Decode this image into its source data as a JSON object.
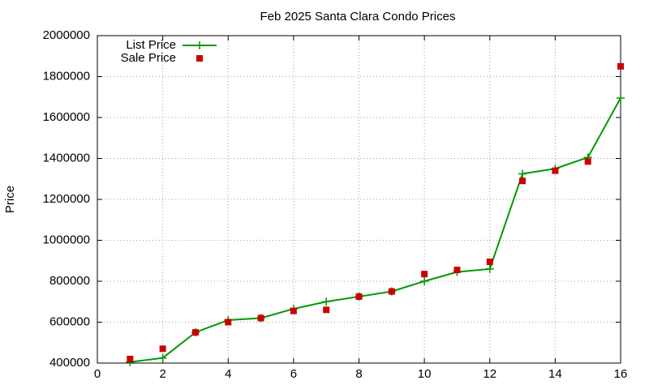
{
  "chart_data": {
    "type": "line",
    "title": "Feb 2025 Santa Clara Condo Prices",
    "y_label": "Price",
    "x": [
      1,
      2,
      3,
      4,
      5,
      6,
      7,
      8,
      9,
      10,
      11,
      12,
      13,
      14,
      15,
      16
    ],
    "series": [
      {
        "name": "List Price",
        "color": "#009900",
        "line": true,
        "marker": "plus",
        "values": [
          405000,
          425000,
          550000,
          610000,
          620000,
          665000,
          700000,
          725000,
          750000,
          800000,
          845000,
          860000,
          1325000,
          1350000,
          1405000,
          1695000
        ]
      },
      {
        "name": "Sale Price",
        "color": "#cc0000",
        "line": false,
        "marker": "square",
        "values": [
          420000,
          470000,
          550000,
          600000,
          620000,
          655000,
          660000,
          725000,
          750000,
          835000,
          855000,
          895000,
          1290000,
          1340000,
          1385000,
          1850000
        ]
      }
    ],
    "xlim": [
      0,
      16
    ],
    "xticks": [
      0,
      2,
      4,
      6,
      8,
      10,
      12,
      14,
      16
    ],
    "ylim": [
      400000,
      2000000
    ],
    "yticks": [
      400000,
      600000,
      800000,
      1000000,
      1200000,
      1400000,
      1600000,
      1800000,
      2000000
    ],
    "grid": true,
    "legend": "top-left"
  }
}
